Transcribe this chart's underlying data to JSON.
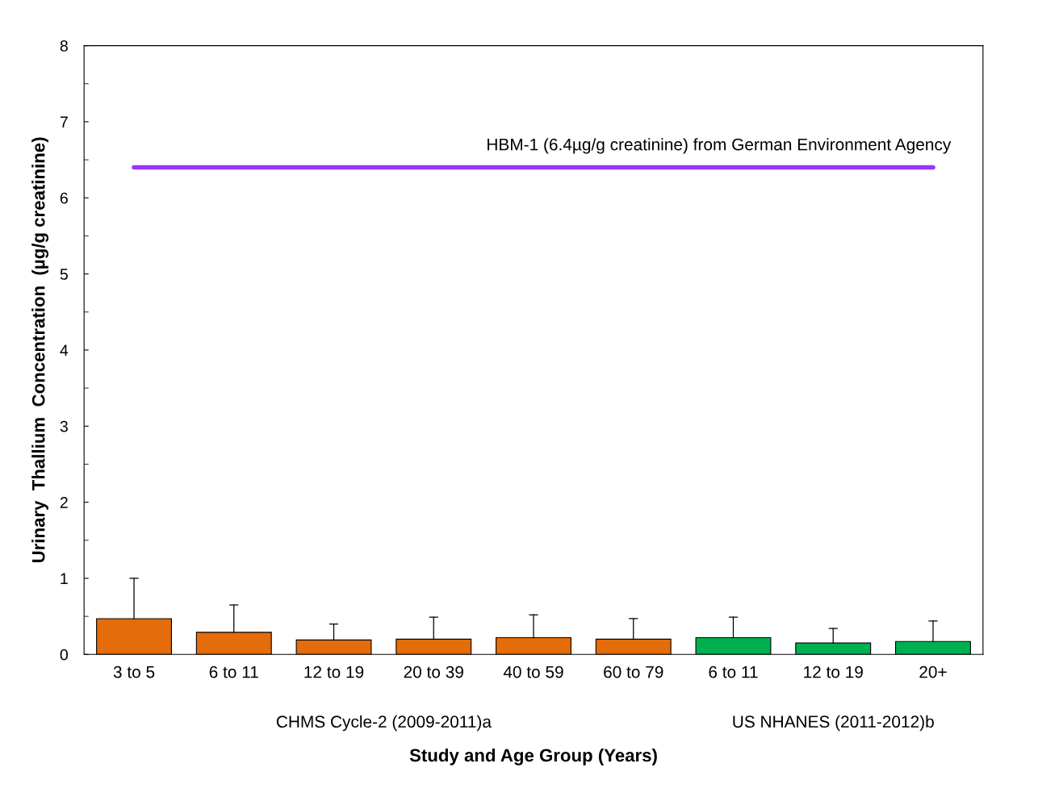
{
  "chart_data": {
    "type": "bar",
    "xlabel": "Study and Age Group (Years)",
    "ylabel": "Urinary  Thallium  Concentration  (µg/g creatinine)",
    "categories": [
      "3 to 5",
      "6 to 11",
      "12 to 19",
      "20 to 39",
      "40 to 59",
      "60 to 79",
      "6 to 11",
      "12 to 19",
      "20+"
    ],
    "values": [
      0.47,
      0.29,
      0.19,
      0.2,
      0.22,
      0.2,
      0.22,
      0.15,
      0.17
    ],
    "errors": [
      [
        0.47,
        1.0
      ],
      [
        0.29,
        0.65
      ],
      [
        0.19,
        0.4
      ],
      [
        0.2,
        0.49
      ],
      [
        0.22,
        0.52
      ],
      [
        0.2,
        0.47
      ],
      [
        0.22,
        0.49
      ],
      [
        0.15,
        0.34
      ],
      [
        0.17,
        0.44
      ]
    ],
    "colors": [
      "#e46c0a",
      "#e46c0a",
      "#e46c0a",
      "#e46c0a",
      "#e46c0a",
      "#e46c0a",
      "#00b050",
      "#00b050",
      "#00b050"
    ],
    "ylim": [
      0,
      8
    ],
    "yticks": [
      0,
      1,
      2,
      3,
      4,
      5,
      6,
      7,
      8
    ],
    "grid": false,
    "ref_lines": [
      {
        "axis": "y",
        "value": 6.4,
        "label": "HBM-1 (6.4µg/g creatinine) from German Environment Agency",
        "color": "#9933ff"
      }
    ],
    "annotations": [
      "CHMS Cycle-2 (2009-2011)a",
      "US NHANES (2011-2012)b"
    ]
  }
}
